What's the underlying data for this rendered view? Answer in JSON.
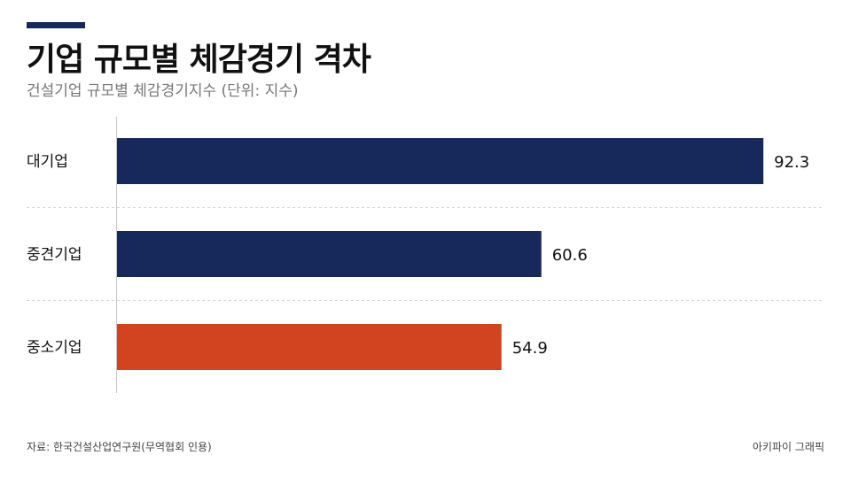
{
  "header": {
    "title": "기업 규모별 체감경기 격차",
    "subtitle": "건설기업 규모별 체감경기지수 (단위: 지수)"
  },
  "footer": {
    "source": "자료: 한국건설산업연구원(무역협회 인용)",
    "credit": "아키파이 그래픽"
  },
  "colors": {
    "navy": "#17295a",
    "orange": "#d2441f"
  },
  "chart_data": {
    "type": "bar",
    "orientation": "horizontal",
    "categories": [
      "대기업",
      "중견기업",
      "중소기업"
    ],
    "values": [
      92.3,
      60.6,
      54.9
    ],
    "value_labels": [
      "92.3",
      "60.6",
      "54.9"
    ],
    "bar_colors": [
      "#17295a",
      "#17295a",
      "#d2441f"
    ],
    "xlim": [
      0,
      100
    ],
    "grid": "horizontal dashed separators",
    "legend": "none"
  }
}
